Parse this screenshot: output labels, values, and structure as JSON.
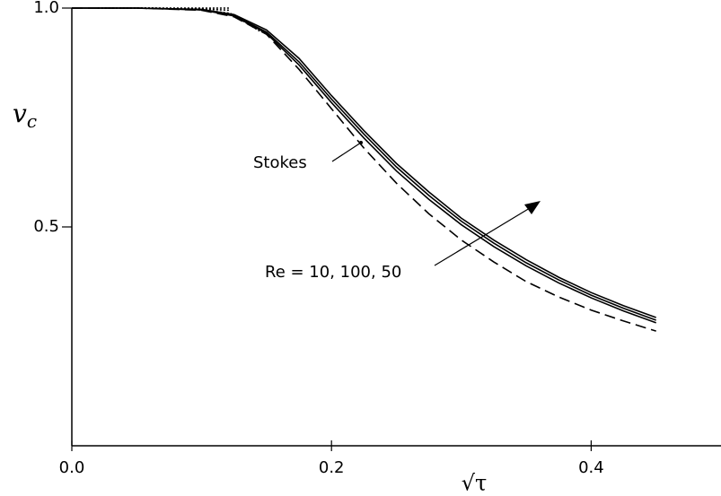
{
  "chart_data": {
    "type": "line",
    "x_label": "√τ",
    "y_label": {
      "main": "v",
      "sub": "c"
    },
    "annotations": [
      "Stokes",
      "Re = 10, 100, 50"
    ],
    "xlim": [
      0,
      0.5
    ],
    "ylim": [
      0,
      1
    ],
    "xticks": [
      {
        "value": 0,
        "label": "0.0"
      },
      {
        "value": 0.2,
        "label": "0.2"
      },
      {
        "value": 0.4,
        "label": "0.4"
      }
    ],
    "yticks": [
      0.5,
      {
        "value": 1,
        "label": "1.0"
      }
    ],
    "color": "#000000",
    "series": [
      {
        "style": "dashed",
        "x": [
          0,
          0.05,
          0.1,
          0.125,
          0.15,
          0.175,
          0.2,
          0.225,
          0.25,
          0.275,
          0.3,
          0.325,
          0.35,
          0.375,
          0.4,
          0.425,
          0.45
        ],
        "values": [
          1.0,
          1.0,
          0.995,
          0.98,
          0.94,
          0.86,
          0.77,
          0.68,
          0.6,
          0.53,
          0.47,
          0.42,
          0.375,
          0.34,
          0.31,
          0.285,
          0.262
        ]
      },
      {
        "style": "solid",
        "x": [
          0,
          0.05,
          0.1,
          0.125,
          0.15,
          0.175,
          0.2,
          0.225,
          0.25,
          0.275,
          0.3,
          0.325,
          0.35,
          0.375,
          0.4,
          0.425,
          0.45
        ],
        "values": [
          1.0,
          1.0,
          0.997,
          0.985,
          0.95,
          0.885,
          0.8,
          0.72,
          0.645,
          0.58,
          0.52,
          0.47,
          0.425,
          0.385,
          0.35,
          0.32,
          0.293
        ]
      },
      {
        "style": "solid",
        "x": [
          0,
          0.05,
          0.1,
          0.125,
          0.15,
          0.175,
          0.2,
          0.225,
          0.25,
          0.275,
          0.3,
          0.325,
          0.35,
          0.375,
          0.4,
          0.425,
          0.45
        ],
        "values": [
          1.0,
          1.0,
          0.996,
          0.983,
          0.945,
          0.877,
          0.792,
          0.712,
          0.637,
          0.572,
          0.513,
          0.463,
          0.418,
          0.379,
          0.344,
          0.314,
          0.287
        ]
      },
      {
        "style": "solid",
        "x": [
          0,
          0.05,
          0.1,
          0.125,
          0.15,
          0.175,
          0.2,
          0.225,
          0.25,
          0.275,
          0.3,
          0.325,
          0.35,
          0.375,
          0.4,
          0.425,
          0.45
        ],
        "values": [
          1.0,
          1.0,
          0.996,
          0.982,
          0.942,
          0.87,
          0.784,
          0.703,
          0.628,
          0.563,
          0.505,
          0.455,
          0.411,
          0.372,
          0.338,
          0.308,
          0.281
        ]
      },
      {
        "style": "dotted",
        "x": [
          0.02,
          0.06,
          0.1,
          0.122
        ],
        "values": [
          1.0,
          1.0,
          1.0,
          1.0
        ]
      },
      {
        "style": "dotted",
        "x": [
          0.02,
          0.06,
          0.1,
          0.122
        ],
        "values": [
          1.0,
          1.0,
          0.998,
          0.995
        ]
      },
      {
        "style": "dotted",
        "x": [
          0.02,
          0.06,
          0.1,
          0.122,
          0.145
        ],
        "values": [
          1.0,
          1.0,
          0.996,
          0.988,
          0.947
        ]
      }
    ]
  }
}
